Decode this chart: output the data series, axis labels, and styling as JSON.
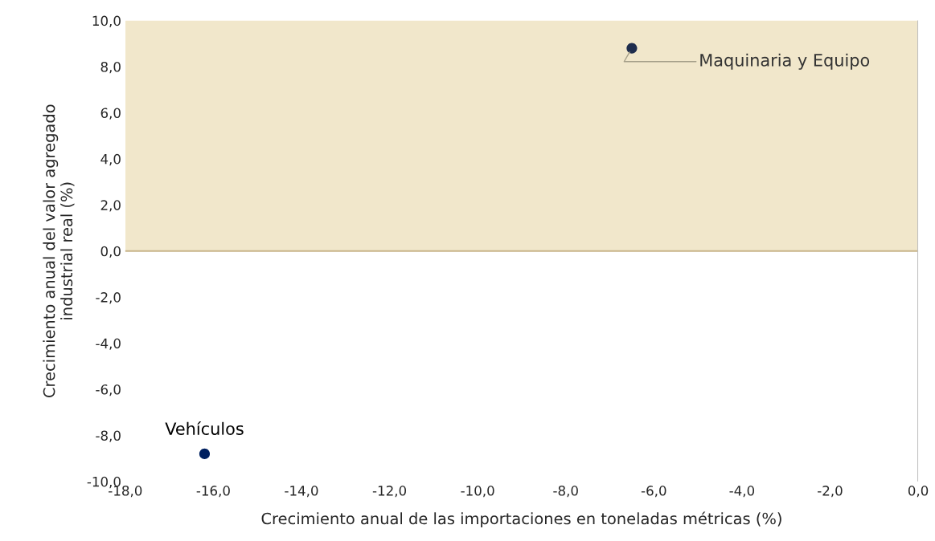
{
  "chart_data": {
    "type": "scatter",
    "xlabel": "Crecimiento anual de las importaciones en toneladas métricas (%)",
    "ylabel": "Crecimiento anual del valor agregado\nindustrial real (%)",
    "series": [
      {
        "x": [
          -6.5,
          -16.2
        ],
        "values": [
          8.8,
          -8.8
        ],
        "colors": [
          "#1f2d4d",
          "#002060"
        ]
      }
    ],
    "marker": "circle",
    "grid": false,
    "xlim": [
      -18,
      0
    ],
    "xticks": [
      {
        "value": -18,
        "label": "-18,0"
      },
      {
        "value": -16,
        "label": "-16,0"
      },
      {
        "value": -14,
        "label": "-14,0"
      },
      {
        "value": -12,
        "label": "-12,0"
      },
      {
        "value": -10,
        "label": "-10,0"
      },
      {
        "value": -8,
        "label": "-8,0"
      },
      {
        "value": -6,
        "label": "-6,0"
      },
      {
        "value": -4,
        "label": "-4,0"
      },
      {
        "value": -2,
        "label": "-2,0"
      },
      {
        "value": 0,
        "label": "0,0"
      }
    ],
    "ylim": [
      -10,
      10
    ],
    "yticks": [
      {
        "value": -10,
        "label": "-10,0"
      },
      {
        "value": -8,
        "label": "-8,0"
      },
      {
        "value": -6,
        "label": "-6,0"
      },
      {
        "value": -4,
        "label": "-4,0"
      },
      {
        "value": -2,
        "label": "-2,0"
      },
      {
        "value": 0,
        "label": "0,0"
      },
      {
        "value": 2,
        "label": "2,0"
      },
      {
        "value": 4,
        "label": "4,0"
      },
      {
        "value": 6,
        "label": "6,0"
      },
      {
        "value": 8,
        "label": "8,0"
      },
      {
        "value": 10,
        "label": "10,0"
      }
    ],
    "bands": [
      {
        "axis": "y",
        "from": 0,
        "to": 10,
        "color": "#f1e7cb"
      }
    ],
    "ref_lines": [
      {
        "axis": "y",
        "value": 0,
        "color": "#c8b58a"
      },
      {
        "axis": "x",
        "value": 0,
        "color": "#bfbfbf"
      }
    ],
    "annotations": [
      {
        "text": "Maquinaria y Equipo",
        "x": -6.5,
        "y": 8.8
      },
      {
        "text": "Vehículos",
        "x": -16.2,
        "y": -8.8
      }
    ]
  }
}
